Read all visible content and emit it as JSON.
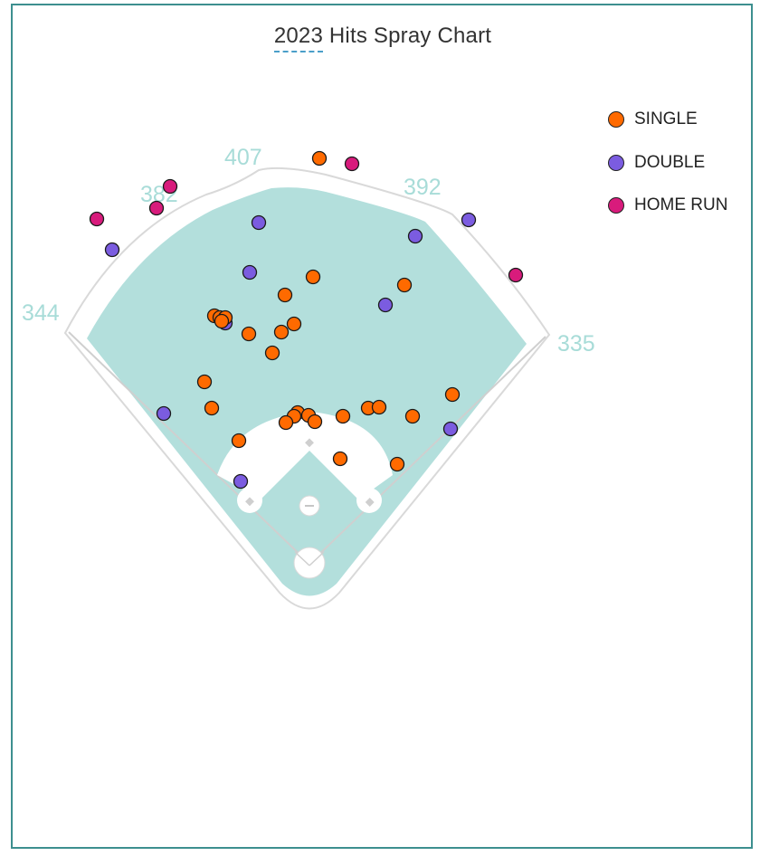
{
  "title_year": "2023",
  "title_rest": " Hits Spray Chart",
  "colors": {
    "field_grass": "#b3dfdc",
    "dirt": "#ffffff",
    "wall": "#d9d9d9",
    "distance_text": "#a8dcd8",
    "single": "#ff6a00",
    "double": "#7b5ce0",
    "home_run": "#d81b7c",
    "frame": "#3d8f8f"
  },
  "wall_distances": [
    {
      "label": "344"
    },
    {
      "label": "382"
    },
    {
      "label": "407"
    },
    {
      "label": "392"
    },
    {
      "label": "335"
    }
  ],
  "legend": [
    {
      "key": "single",
      "label": "SINGLE"
    },
    {
      "key": "double",
      "label": "DOUBLE"
    },
    {
      "key": "home_run",
      "label": "HOME RUN"
    }
  ],
  "chart_data": {
    "type": "scatter",
    "title": "2023 Hits Spray Chart",
    "series": [
      {
        "name": "SINGLE",
        "points": [
          [
            353,
            175
          ],
          [
            346,
            306
          ],
          [
            315,
            326
          ],
          [
            447,
            315
          ],
          [
            237,
            349
          ],
          [
            243,
            351
          ],
          [
            249,
            351
          ],
          [
            245,
            355
          ],
          [
            275,
            369
          ],
          [
            311,
            367
          ],
          [
            325,
            358
          ],
          [
            301,
            390
          ],
          [
            226,
            422
          ],
          [
            234,
            451
          ],
          [
            329,
            456
          ],
          [
            341,
            459
          ],
          [
            325,
            460
          ],
          [
            316,
            467
          ],
          [
            348,
            466
          ],
          [
            379,
            460
          ],
          [
            407,
            451
          ],
          [
            419,
            450
          ],
          [
            456,
            460
          ],
          [
            500,
            436
          ],
          [
            264,
            487
          ],
          [
            376,
            507
          ],
          [
            439,
            513
          ]
        ]
      },
      {
        "name": "DOUBLE",
        "points": [
          [
            286,
            246
          ],
          [
            459,
            261
          ],
          [
            518,
            243
          ],
          [
            124,
            276
          ],
          [
            276,
            301
          ],
          [
            426,
            337
          ],
          [
            249,
            357
          ],
          [
            181,
            457
          ],
          [
            498,
            474
          ],
          [
            266,
            532
          ]
        ]
      },
      {
        "name": "HOME RUN",
        "points": [
          [
            107,
            242
          ],
          [
            173,
            230
          ],
          [
            188,
            206
          ],
          [
            389,
            181
          ],
          [
            570,
            304
          ]
        ]
      }
    ]
  }
}
